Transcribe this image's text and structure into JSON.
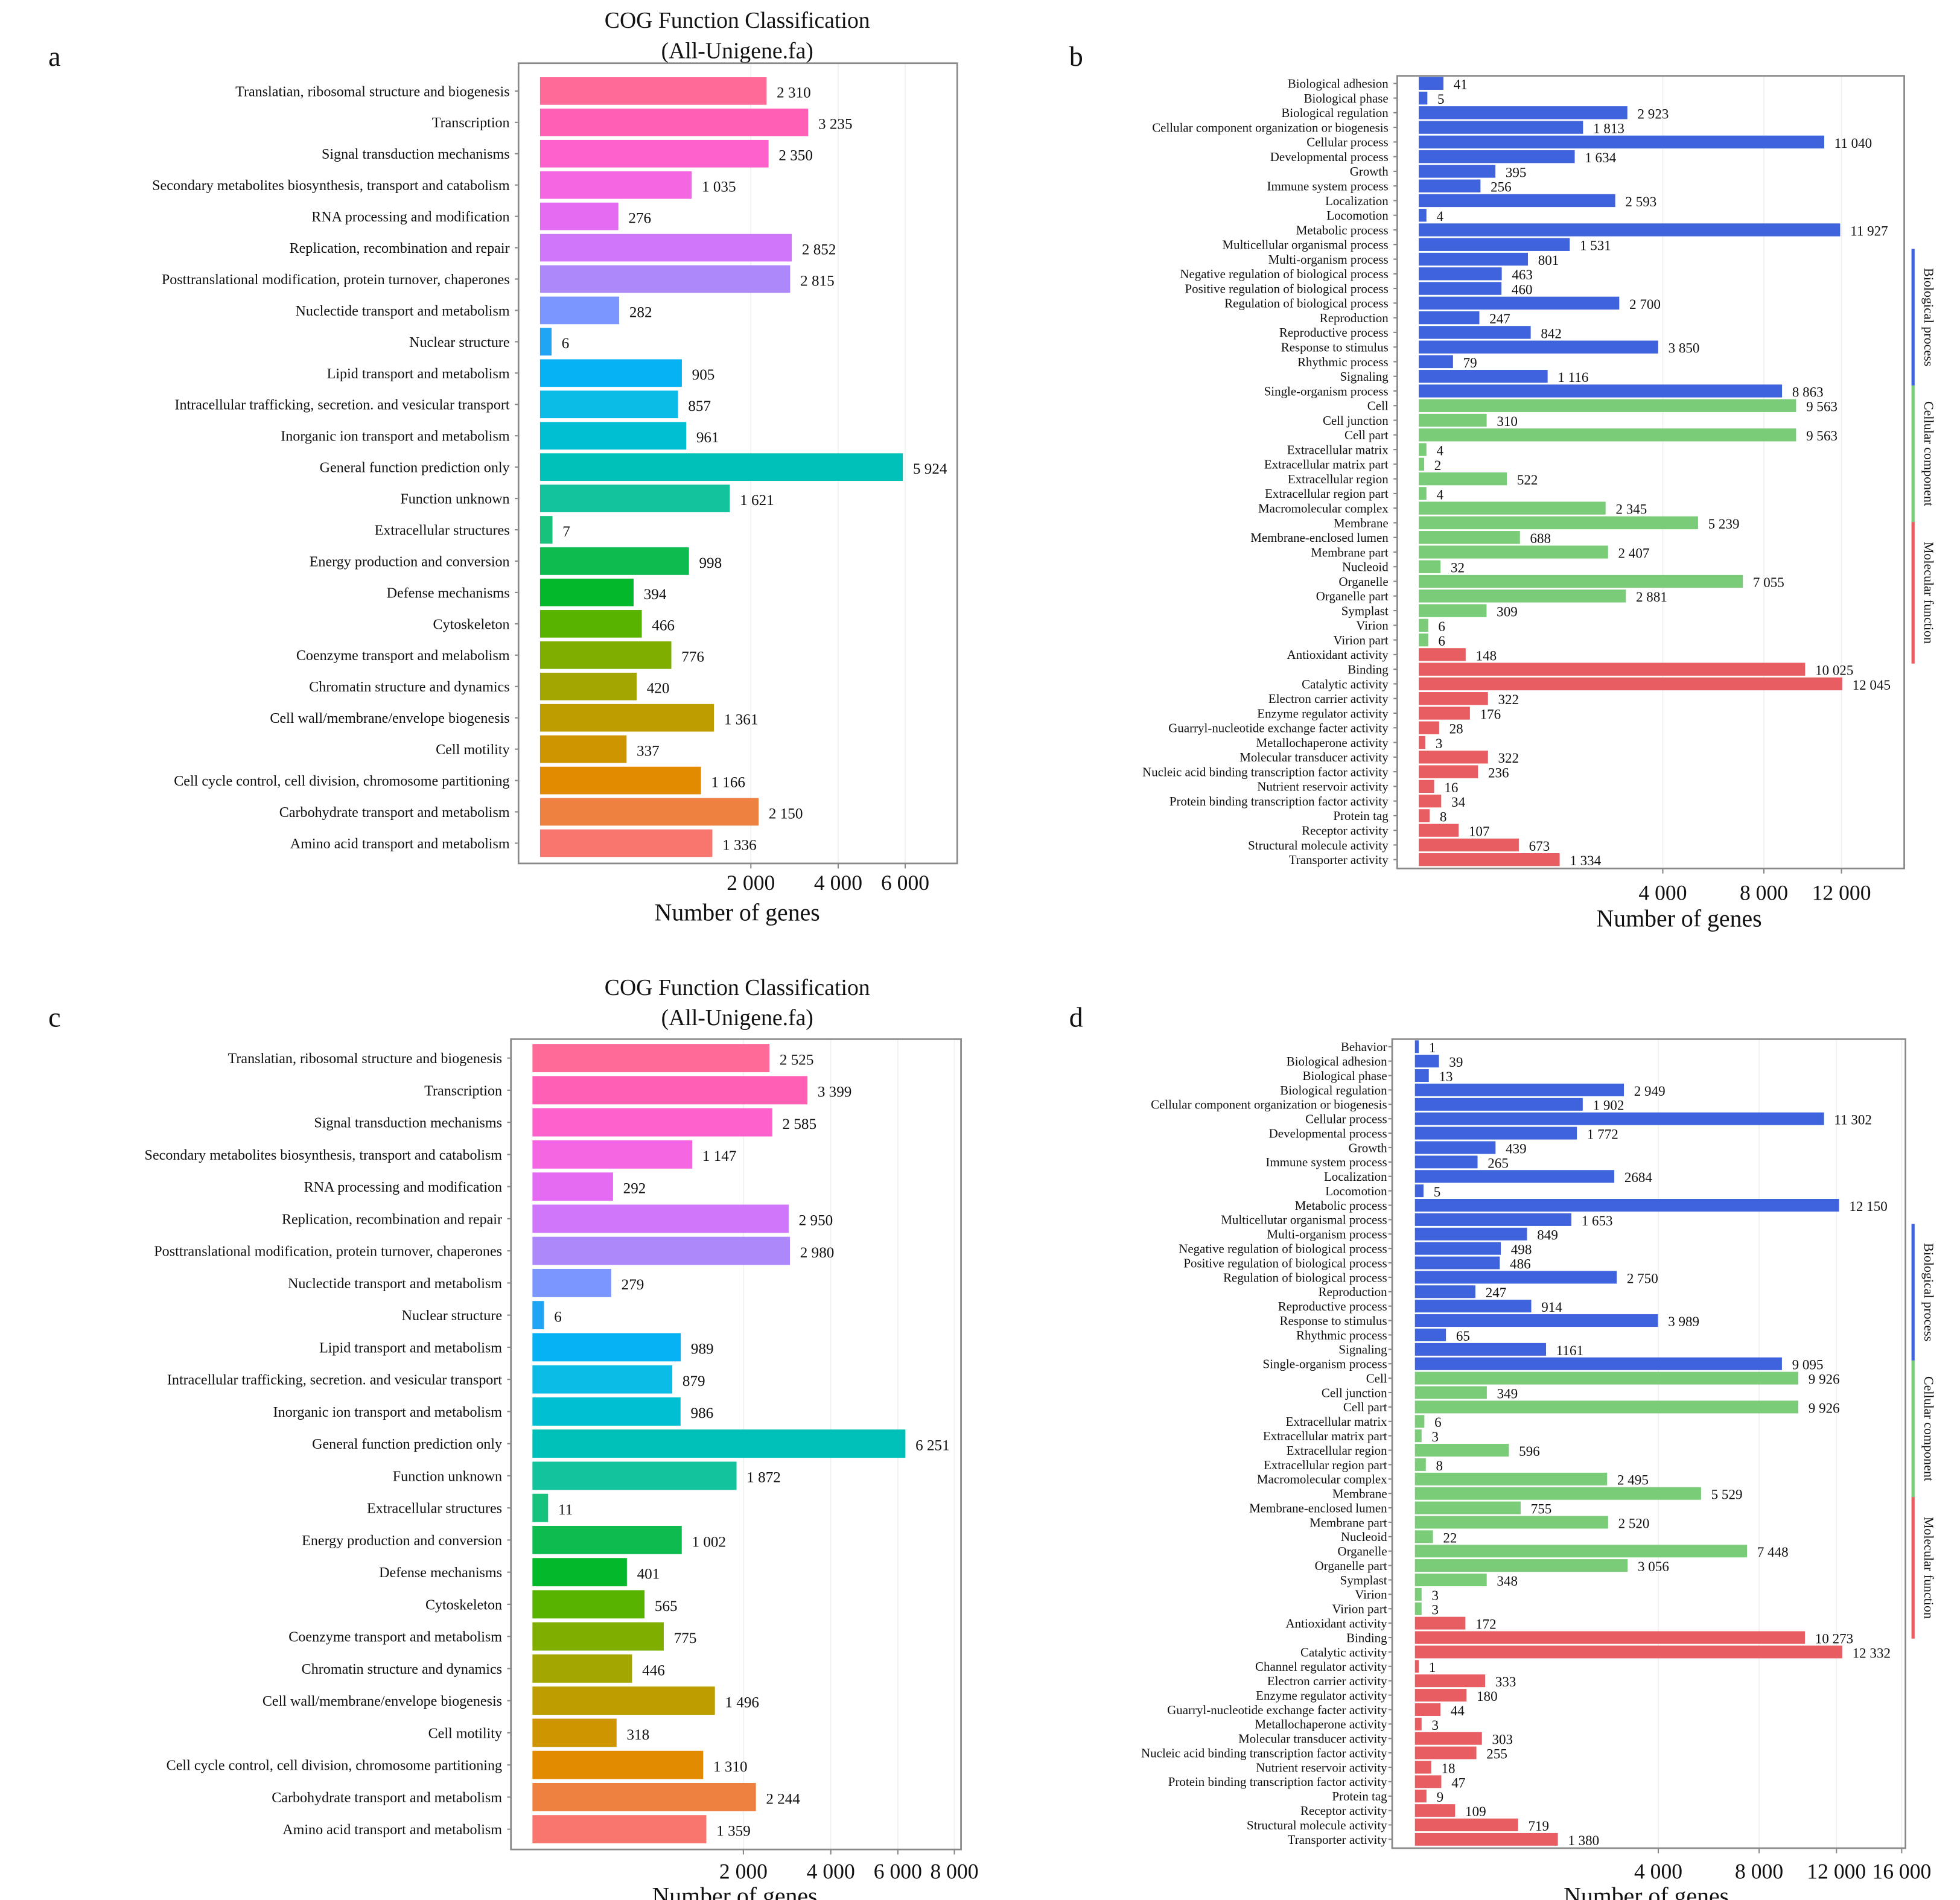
{
  "chart_data": [
    {
      "panel": "a",
      "type": "bar",
      "orientation": "horizontal",
      "x_scale": "sqrt",
      "title": [
        "COG Function Classification",
        "(All-Unigene.fa)"
      ],
      "xlabel": "Number of genes",
      "xticks": [
        2000,
        4000,
        6000
      ],
      "xtick_labels": [
        "2 000",
        "4 000",
        "6 000"
      ],
      "categories": [
        "Translatian, ribosomal structure and biogenesis",
        "Transcription",
        "Signal transduction mechanisms",
        "Secondary metabolites biosynthesis, transport and catabolism",
        "RNA processing and modification",
        "Replication, recombination and repair",
        "Posttranslational modification, protein turnover, chaperones",
        "Nuclectide transport and metabolism",
        "Nuclear structure",
        "Lipid transport and metabolism",
        "Intracellular trafficking, secretion. and vesicular transport",
        "Inorganic ion transport and metabolism",
        "General function prediction only",
        "Function unknown",
        "Extracellular structures",
        "Energy production and conversion",
        "Defense mechanisms",
        "Cytoskeleton",
        "Coenzyme transport and melabolism",
        "Chromatin structure and dynamics",
        "Cell wall/membrane/envelope biogenesis",
        "Cell motility",
        "Cell cycle control, cell division, chromosome partitioning",
        "Carbohydrate transport and metabolism",
        "Amino acid transport and metabolism"
      ],
      "values": [
        2310,
        3235,
        2350,
        1035,
        276,
        2852,
        2815,
        282,
        6,
        905,
        857,
        961,
        5924,
        1621,
        7,
        998,
        394,
        466,
        776,
        420,
        1361,
        337,
        1166,
        2150,
        1336
      ],
      "value_labels": [
        "2 310",
        "3 235",
        "2 350",
        "1 035",
        "276",
        "2 852",
        "2 815",
        "282",
        "6",
        "905",
        "857",
        "961",
        "5 924",
        "1 621",
        "7",
        "998",
        "394",
        "466",
        "776",
        "420",
        "1 361",
        "337",
        "1 166",
        "2 150",
        "1 336"
      ],
      "colors": [
        "#FF6A98",
        "#FF5FB4",
        "#FF61CC",
        "#F466E2",
        "#E46CF2",
        "#CF76FB",
        "#AC88FA",
        "#7B96FF",
        "#1FA5F3",
        "#06B2F3",
        "#0ABCE6",
        "#00BFD2",
        "#00C1B9",
        "#12C39D",
        "#17C27C",
        "#0DBB4E",
        "#04B82C",
        "#57B300",
        "#7FAE00",
        "#A3A500",
        "#BD9D00",
        "#CF9500",
        "#E28A00",
        "#EE8040",
        "#F8766D"
      ]
    },
    {
      "panel": "b",
      "type": "bar",
      "orientation": "horizontal",
      "x_scale": "sqrt",
      "xlabel": "Number of genes",
      "xticks": [
        4000,
        8000,
        12000
      ],
      "xtick_labels": [
        "4 000",
        "8 000",
        "12 000"
      ],
      "groups": [
        {
          "name": "Biological process",
          "color": "#3F63DC",
          "count": 22
        },
        {
          "name": "Cellular component",
          "color": "#7ACC78",
          "count": 17
        },
        {
          "name": "Molecular function",
          "color": "#E85D62",
          "count": 15
        }
      ],
      "categories": [
        "Biological adhesion",
        "Biological phase",
        "Biological regulation",
        "Cellular component organization or biogenesis",
        "Cellular process",
        "Developmental process",
        "Growth",
        "Immune system process",
        "Localization",
        "Locomotion",
        "Metabolic process",
        "Multicellular organismal process",
        "Multi-organism process",
        "Negative regulation of biological process",
        "Positive regulation of biological process",
        "Regulation of biological process",
        "Reproduction",
        "Reproductive process",
        "Response to stimulus",
        "Rhythmic process",
        "Signaling",
        "Single-organism process",
        "Cell",
        "Cell junction",
        "Cell part",
        "Extracellular matrix",
        "Extracellular matrix part",
        "Extracellular region",
        "Extracellular region part",
        "Macromolecular complex",
        "Membrane",
        "Membrane-enclosed lumen",
        "Membrane part",
        "Nucleoid",
        "Organelle",
        "Organelle part",
        "Symplast",
        "Virion",
        "Virion part",
        "Antioxidant activity",
        "Binding",
        "Catalytic activity",
        "Electron carrier activity",
        "Enzyme regulator activity",
        "Guarryl-nucleotide exchange facter activity",
        "Metallochaperone activity",
        "Molecular transducer activity",
        "Nucleic acid binding transcription factor activity",
        "Nutrient reservoir activity",
        "Protein binding transcription factor activity",
        "Protein tag",
        "Receptor activity",
        "Structural molecule activity",
        "Transporter activity"
      ],
      "values": [
        41,
        5,
        2923,
        1813,
        11040,
        1634,
        395,
        256,
        2593,
        4,
        11927,
        1531,
        801,
        463,
        460,
        2700,
        247,
        842,
        3850,
        79,
        1116,
        8863,
        9563,
        310,
        9563,
        4,
        2,
        522,
        4,
        2345,
        5239,
        688,
        2407,
        32,
        7055,
        2881,
        309,
        6,
        6,
        148,
        10025,
        12045,
        322,
        176,
        28,
        3,
        322,
        236,
        16,
        34,
        8,
        107,
        673,
        1334
      ],
      "value_labels": [
        "41",
        "5",
        "2 923",
        "1 813",
        "11 040",
        "1 634",
        "395",
        "256",
        "2 593",
        "4",
        "11 927",
        "1 531",
        "801",
        "463",
        "460",
        "2 700",
        "247",
        "842",
        "3 850",
        "79",
        "1 116",
        "8 863",
        "9 563",
        "310",
        "9 563",
        "4",
        "2",
        "522",
        "4",
        "2 345",
        "5 239",
        "688",
        "2 407",
        "32",
        "7 055",
        "2 881",
        "309",
        "6",
        "6",
        "148",
        "10 025",
        "12 045",
        "322",
        "176",
        "28",
        "3",
        "322",
        "236",
        "16",
        "34",
        "8",
        "107",
        "673",
        "1 334"
      ]
    },
    {
      "panel": "c",
      "type": "bar",
      "orientation": "horizontal",
      "x_scale": "sqrt",
      "title": [
        "COG Function Classification",
        "(All-Unigene.fa)"
      ],
      "xlabel": "Number of genes",
      "xticks": [
        2000,
        4000,
        6000,
        8000
      ],
      "xtick_labels": [
        "2 000",
        "4 000",
        "6 000",
        "8 000"
      ],
      "categories": [
        "Translatian, ribosomal structure and biogenesis",
        "Transcription",
        "Signal transduction mechanisms",
        "Secondary metabolites biosynthesis, transport and catabolism",
        "RNA processing and modification",
        "Replication, recombination and repair",
        "Posttranslational modification, protein turnover, chaperones",
        "Nuclectide transport and metabolism",
        "Nuclear structure",
        "Lipid transport and metabolism",
        "Intracellular trafficking, secretion. and vesicular transport",
        "Inorganic ion transport and metabolism",
        "General function prediction only",
        "Function unknown",
        "Extracellular structures",
        "Energy production and conversion",
        "Defense mechanisms",
        "Cytoskeleton",
        "Coenzyme transport and metabolism",
        "Chromatin structure and dynamics",
        "Cell wall/membrane/envelope biogenesis",
        "Cell motility",
        "Cell cycle control, cell division, chromosome partitioning",
        "Carbohydrate transport and metabolism",
        "Amino acid transport and metabolism"
      ],
      "values": [
        2525,
        3399,
        2585,
        1147,
        292,
        2950,
        2980,
        279,
        6,
        989,
        879,
        986,
        6251,
        1872,
        11,
        1002,
        401,
        565,
        775,
        446,
        1496,
        318,
        1310,
        2244,
        1359
      ],
      "value_labels": [
        "2 525",
        "3 399",
        "2 585",
        "1 147",
        "292",
        "2 950",
        "2 980",
        "279",
        "6",
        "989",
        "879",
        "986",
        "6 251",
        "1 872",
        "11",
        "1 002",
        "401",
        "565",
        "775",
        "446",
        "1 496",
        "318",
        "1 310",
        "2 244",
        "1 359"
      ],
      "colors": [
        "#FF6A98",
        "#FF5FB4",
        "#FF61CC",
        "#F466E2",
        "#E46CF2",
        "#CF76FB",
        "#AC88FA",
        "#7B96FF",
        "#1FA5F3",
        "#06B2F3",
        "#0ABCE6",
        "#00BFD2",
        "#00C1B9",
        "#12C39D",
        "#17C27C",
        "#0DBB4E",
        "#04B82C",
        "#57B300",
        "#7FAE00",
        "#A3A500",
        "#BD9D00",
        "#CF9500",
        "#E28A00",
        "#EE8040",
        "#F8766D"
      ]
    },
    {
      "panel": "d",
      "type": "bar",
      "orientation": "horizontal",
      "x_scale": "sqrt",
      "xlabel": "Number of genes",
      "xticks": [
        4000,
        8000,
        12000,
        16000
      ],
      "xtick_labels": [
        "4 000",
        "8 000",
        "12 000",
        "16 000"
      ],
      "groups": [
        {
          "name": "Biological process",
          "color": "#3F63DC",
          "count": 23
        },
        {
          "name": "Cellular component",
          "color": "#7ACC78",
          "count": 17
        },
        {
          "name": "Molecular function",
          "color": "#E85D62",
          "count": 16
        }
      ],
      "categories": [
        "Behavior",
        "Biological adhesion",
        "Biological phase",
        "Biological regulation",
        "Cellular component organization or biogenesis",
        "Cellular process",
        "Developmental process",
        "Growth",
        "Immune system process",
        "Localization",
        "Locomotion",
        "Metabolic process",
        "Multicellutar organismal process",
        "Multi-organism process",
        "Negative regulation of biological process",
        "Positive regulation of biological process",
        "Regulation of biological process",
        "Reproduction",
        "Reproductive process",
        "Response to stimulus",
        "Rhythmic process",
        "Signaling",
        "Single-organism process",
        "Cell",
        "Cell junction",
        "Cell part",
        "Extracellular matrix",
        "Extracellular matrix part",
        "Extracellular region",
        "Extracellular region part",
        "Macromolecular complex",
        "Membrane",
        "Membrane-enclosed lumen",
        "Membrane part",
        "Nucleoid",
        "Organelle",
        "Organelle part",
        "Symplast",
        "Virion",
        "Virion part",
        "Antioxidant activity",
        "Binding",
        "Catalytic activity",
        "Channel regulator activity",
        "Electron carrier activity",
        "Enzyme regulator activity",
        "Guarryl-nucleotide exchange facter activity",
        "Metallochaperone activity",
        "Molecular transducer activity",
        "Nucleic acid binding transcription factor activity",
        "Nutrient reservoir activity",
        "Protein binding transcription factor activity",
        "Protein tag",
        "Receptor activity",
        "Structural molecule activity",
        "Transporter activity"
      ],
      "values": [
        1,
        39,
        13,
        2949,
        1902,
        11302,
        1772,
        439,
        265,
        2684,
        5,
        12150,
        1653,
        849,
        498,
        486,
        2750,
        247,
        914,
        3989,
        65,
        1161,
        9095,
        9926,
        349,
        9926,
        6,
        3,
        596,
        8,
        2495,
        5529,
        755,
        2520,
        22,
        7448,
        3056,
        348,
        3,
        3,
        172,
        10273,
        12332,
        1,
        333,
        180,
        44,
        3,
        303,
        255,
        18,
        47,
        9,
        109,
        719,
        1380
      ],
      "value_labels": [
        "1",
        "39",
        "13",
        "2 949",
        "1 902",
        "11 302",
        "1 772",
        "439",
        "265",
        "2684",
        "5",
        "12 150",
        "1 653",
        "849",
        "498",
        "486",
        "2 750",
        "247",
        "914",
        "3 989",
        "65",
        "1161",
        "9 095",
        "9 926",
        "349",
        "9 926",
        "6",
        "3",
        "596",
        "8",
        "2 495",
        "5 529",
        "755",
        "2 520",
        "22",
        "7 448",
        "3 056",
        "348",
        "3",
        "3",
        "172",
        "10 273",
        "12 332",
        "1",
        "333",
        "180",
        "44",
        "3",
        "303",
        "255",
        "18",
        "47",
        "9",
        "109",
        "719",
        "1 380"
      ]
    }
  ]
}
